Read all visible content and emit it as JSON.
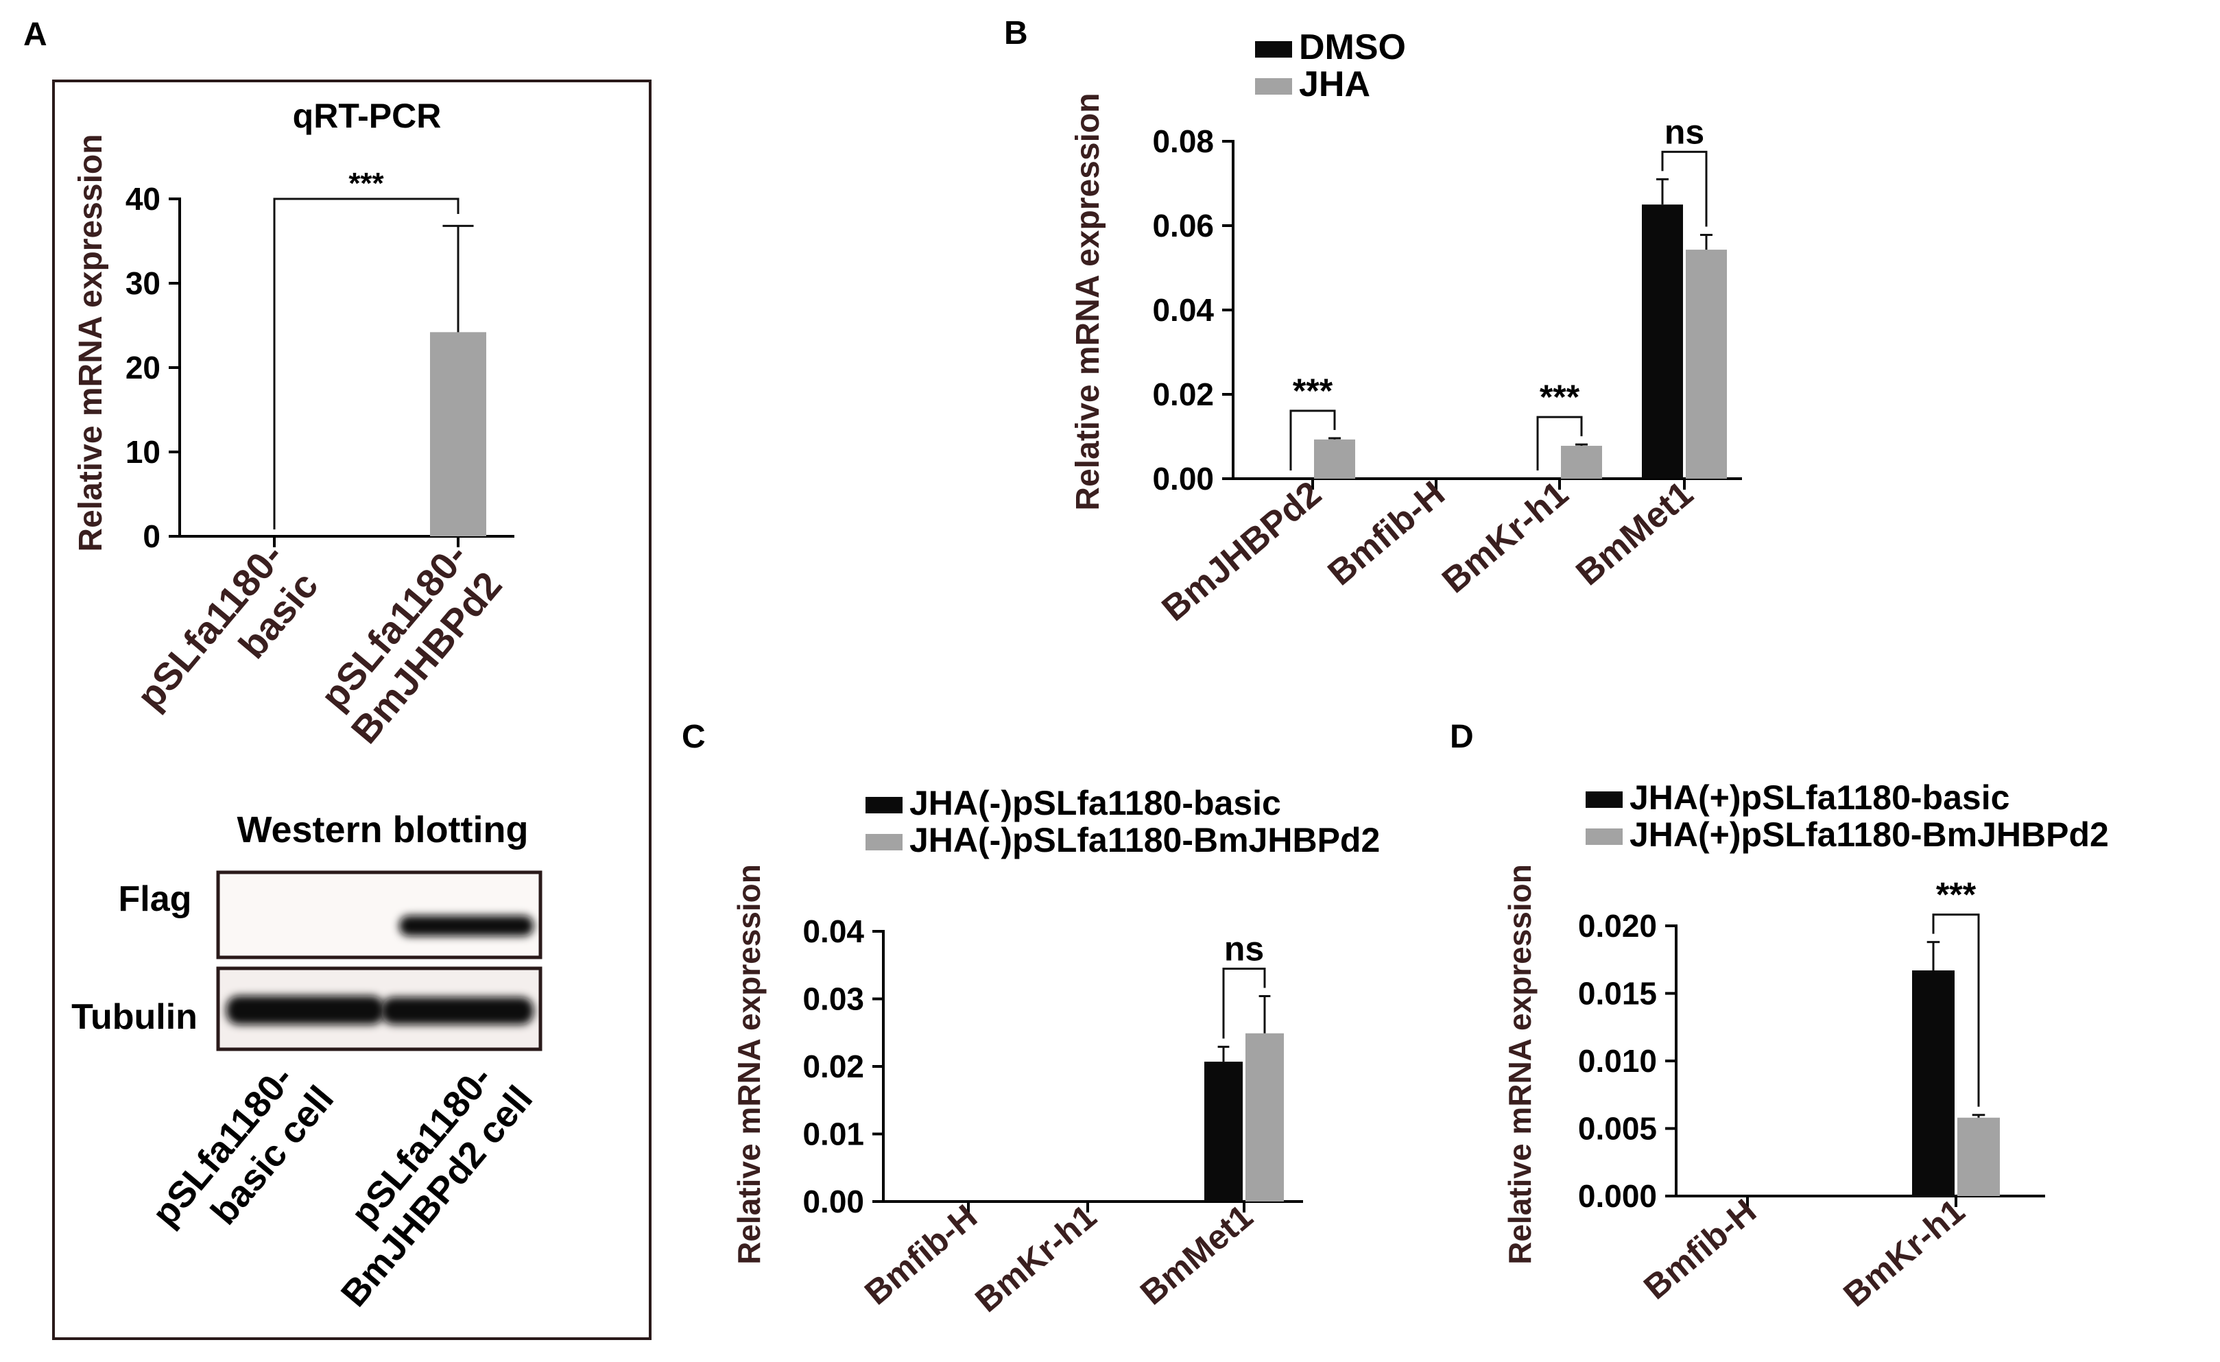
{
  "panels": {
    "A": {
      "letter": "A",
      "chart_title": "qRT-PCR",
      "ylabel": "Relative mRNA expression",
      "wb_title": "Western blotting",
      "bands": [
        "Flag",
        "Tubulin"
      ],
      "wb_lanes": [
        [
          "pSLfa1180-",
          "basic cell"
        ],
        [
          "pSLfa1180-",
          "BmJHBPd2 cell"
        ]
      ]
    },
    "B": {
      "letter": "B",
      "ylabel": "Relative mRNA expression"
    },
    "C": {
      "letter": "C",
      "ylabel": "Relative mRNA expression"
    },
    "D": {
      "letter": "D",
      "ylabel": "Relative mRNA expression"
    }
  },
  "colors": {
    "series1": "#0a0a0a",
    "series2": "#a3a3a3",
    "axis": "#000000",
    "label": "#3a1f1f"
  },
  "chart_data": [
    {
      "panel": "A",
      "type": "bar",
      "title": "qRT-PCR",
      "ylabel": "Relative mRNA expression",
      "xlabel": "",
      "categories": [
        [
          "pSLfa1180-",
          "basic"
        ],
        [
          "pSLfa1180-",
          "BmJHBPd2"
        ]
      ],
      "values": [
        0,
        24.2
      ],
      "errors": [
        0,
        12.6
      ],
      "ylim": [
        0,
        40
      ],
      "yticks": [
        "0",
        "10",
        "20",
        "30",
        "40"
      ],
      "significance": [
        {
          "from": 0,
          "to": 1,
          "label": "***"
        }
      ]
    },
    {
      "panel": "B",
      "type": "bar",
      "ylabel": "Relative mRNA expression",
      "xlabel": "",
      "categories": [
        "BmJHBPd2",
        "Bmfib-H",
        "BmKr-h1",
        "BmMet1"
      ],
      "series": [
        {
          "name": "DMSO",
          "values": [
            0,
            0,
            0,
            0.065
          ],
          "errors": [
            0,
            0,
            0,
            0.006
          ]
        },
        {
          "name": "JHA",
          "values": [
            0.0093,
            0,
            0.0078,
            0.0543
          ],
          "errors": [
            0.0003,
            0,
            0.0003,
            0.0035
          ]
        }
      ],
      "ylim": [
        0,
        0.08
      ],
      "yticks": [
        "0.00",
        "0.02",
        "0.04",
        "0.06",
        "0.08"
      ],
      "significance": [
        {
          "category": 0,
          "label": "***"
        },
        {
          "category": 2,
          "label": "***"
        },
        {
          "category": 3,
          "label": "ns"
        }
      ]
    },
    {
      "panel": "C",
      "type": "bar",
      "ylabel": "Relative mRNA expression",
      "xlabel": "",
      "categories": [
        "Bmfib-H",
        "BmKr-h1",
        "BmMet1"
      ],
      "series": [
        {
          "name": "JHA(-)pSLfa1180-basic",
          "values": [
            0,
            0,
            0.0207
          ],
          "errors": [
            0,
            0,
            0.0022
          ]
        },
        {
          "name": "JHA(-)pSLfa1180-BmJHBPd2",
          "values": [
            0,
            0,
            0.0249
          ],
          "errors": [
            0,
            0,
            0.0055
          ]
        }
      ],
      "ylim": [
        0,
        0.04
      ],
      "yticks": [
        "0.00",
        "0.01",
        "0.02",
        "0.03",
        "0.04"
      ],
      "significance": [
        {
          "category": 2,
          "label": "ns"
        }
      ]
    },
    {
      "panel": "D",
      "type": "bar",
      "ylabel": "Relative mRNA expression",
      "xlabel": "",
      "categories": [
        "Bmfib-H",
        "BmKr-h1"
      ],
      "series": [
        {
          "name": "JHA(+)pSLfa1180-basic",
          "values": [
            0,
            0.0167
          ],
          "errors": [
            0,
            0.0021
          ]
        },
        {
          "name": "JHA(+)pSLfa1180-BmJHBPd2",
          "values": [
            0,
            0.0058
          ],
          "errors": [
            0,
            0.0002
          ]
        }
      ],
      "ylim": [
        0,
        0.02
      ],
      "yticks": [
        "0.000",
        "0.005",
        "0.010",
        "0.015",
        "0.020"
      ],
      "significance": [
        {
          "category": 1,
          "label": "***"
        }
      ]
    }
  ]
}
